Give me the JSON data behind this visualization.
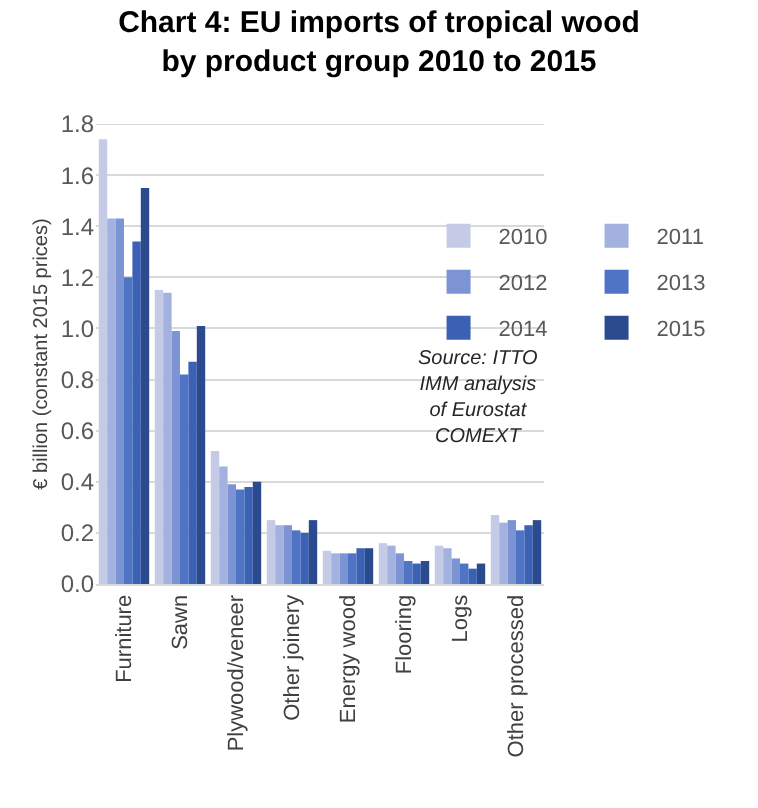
{
  "chart_data": {
    "type": "bar",
    "title": "Chart 4: EU imports of tropical wood by product group 2010 to 2015",
    "ylabel": "€ billion (constant 2015 prices)",
    "categories": [
      "Furniture",
      "Sawn",
      "Plywood/veneer",
      "Other joinery",
      "Energy wood",
      "Flooring",
      "Logs",
      "Other processed"
    ],
    "series": [
      {
        "name": "2010",
        "color": "#c5cbe6",
        "values": [
          1.74,
          1.15,
          0.52,
          0.25,
          0.13,
          0.16,
          0.15,
          0.27
        ]
      },
      {
        "name": "2011",
        "color": "#a3b1df",
        "values": [
          1.43,
          1.14,
          0.46,
          0.23,
          0.12,
          0.15,
          0.14,
          0.24
        ]
      },
      {
        "name": "2012",
        "color": "#7c94d4",
        "values": [
          1.43,
          0.99,
          0.39,
          0.23,
          0.12,
          0.12,
          0.1,
          0.25
        ]
      },
      {
        "name": "2013",
        "color": "#4f74c6",
        "values": [
          1.2,
          0.82,
          0.37,
          0.21,
          0.12,
          0.09,
          0.08,
          0.21
        ]
      },
      {
        "name": "2014",
        "color": "#3a61b3",
        "values": [
          1.34,
          0.87,
          0.38,
          0.2,
          0.14,
          0.08,
          0.06,
          0.23
        ]
      },
      {
        "name": "2015",
        "color": "#2c4b8e",
        "values": [
          1.55,
          1.01,
          0.4,
          0.25,
          0.14,
          0.09,
          0.08,
          0.25
        ]
      }
    ],
    "ylim": [
      0,
      1.8
    ],
    "yticks": [
      {
        "value": 0,
        "label": "0.0"
      },
      0.2,
      0.4,
      0.6,
      0.8,
      {
        "value": 1,
        "label": "1.0"
      },
      1.2,
      1.4,
      1.6,
      1.8
    ],
    "grid": "y",
    "legend": "right",
    "annotations": [
      "Source: ITTO IMM analysis of Eurostat COMEXT"
    ]
  }
}
